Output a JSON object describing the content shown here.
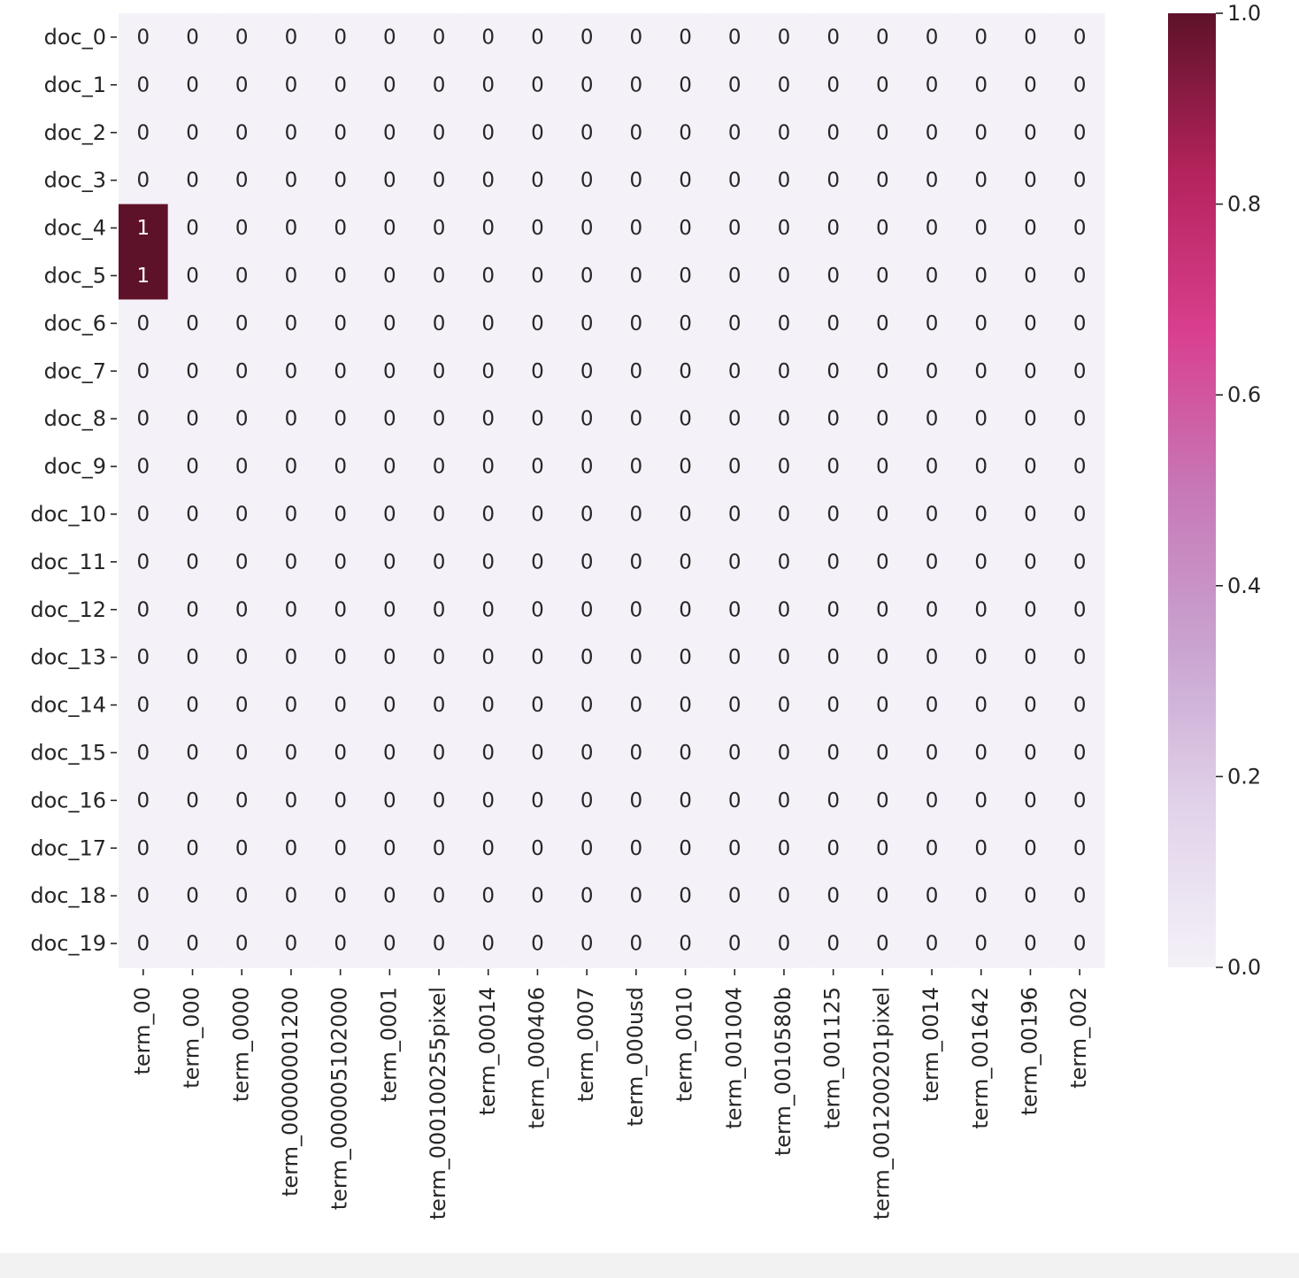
{
  "chart_data": {
    "type": "heatmap",
    "rows": [
      "doc_0",
      "doc_1",
      "doc_2",
      "doc_3",
      "doc_4",
      "doc_5",
      "doc_6",
      "doc_7",
      "doc_8",
      "doc_9",
      "doc_10",
      "doc_11",
      "doc_12",
      "doc_13",
      "doc_14",
      "doc_15",
      "doc_16",
      "doc_17",
      "doc_18",
      "doc_19"
    ],
    "columns": [
      "term_00",
      "term_000",
      "term_0000",
      "term_00000001200",
      "term_000005102000",
      "term_0001",
      "term_000100255pixel",
      "term_00014",
      "term_000406",
      "term_0007",
      "term_000usd",
      "term_0010",
      "term_001004",
      "term_0010580b",
      "term_001125",
      "term_001200201pixel",
      "term_0014",
      "term_001642",
      "term_00196",
      "term_002"
    ],
    "values": [
      [
        0,
        0,
        0,
        0,
        0,
        0,
        0,
        0,
        0,
        0,
        0,
        0,
        0,
        0,
        0,
        0,
        0,
        0,
        0,
        0
      ],
      [
        0,
        0,
        0,
        0,
        0,
        0,
        0,
        0,
        0,
        0,
        0,
        0,
        0,
        0,
        0,
        0,
        0,
        0,
        0,
        0
      ],
      [
        0,
        0,
        0,
        0,
        0,
        0,
        0,
        0,
        0,
        0,
        0,
        0,
        0,
        0,
        0,
        0,
        0,
        0,
        0,
        0
      ],
      [
        0,
        0,
        0,
        0,
        0,
        0,
        0,
        0,
        0,
        0,
        0,
        0,
        0,
        0,
        0,
        0,
        0,
        0,
        0,
        0
      ],
      [
        1,
        0,
        0,
        0,
        0,
        0,
        0,
        0,
        0,
        0,
        0,
        0,
        0,
        0,
        0,
        0,
        0,
        0,
        0,
        0
      ],
      [
        1,
        0,
        0,
        0,
        0,
        0,
        0,
        0,
        0,
        0,
        0,
        0,
        0,
        0,
        0,
        0,
        0,
        0,
        0,
        0
      ],
      [
        0,
        0,
        0,
        0,
        0,
        0,
        0,
        0,
        0,
        0,
        0,
        0,
        0,
        0,
        0,
        0,
        0,
        0,
        0,
        0
      ],
      [
        0,
        0,
        0,
        0,
        0,
        0,
        0,
        0,
        0,
        0,
        0,
        0,
        0,
        0,
        0,
        0,
        0,
        0,
        0,
        0
      ],
      [
        0,
        0,
        0,
        0,
        0,
        0,
        0,
        0,
        0,
        0,
        0,
        0,
        0,
        0,
        0,
        0,
        0,
        0,
        0,
        0
      ],
      [
        0,
        0,
        0,
        0,
        0,
        0,
        0,
        0,
        0,
        0,
        0,
        0,
        0,
        0,
        0,
        0,
        0,
        0,
        0,
        0
      ],
      [
        0,
        0,
        0,
        0,
        0,
        0,
        0,
        0,
        0,
        0,
        0,
        0,
        0,
        0,
        0,
        0,
        0,
        0,
        0,
        0
      ],
      [
        0,
        0,
        0,
        0,
        0,
        0,
        0,
        0,
        0,
        0,
        0,
        0,
        0,
        0,
        0,
        0,
        0,
        0,
        0,
        0
      ],
      [
        0,
        0,
        0,
        0,
        0,
        0,
        0,
        0,
        0,
        0,
        0,
        0,
        0,
        0,
        0,
        0,
        0,
        0,
        0,
        0
      ],
      [
        0,
        0,
        0,
        0,
        0,
        0,
        0,
        0,
        0,
        0,
        0,
        0,
        0,
        0,
        0,
        0,
        0,
        0,
        0,
        0
      ],
      [
        0,
        0,
        0,
        0,
        0,
        0,
        0,
        0,
        0,
        0,
        0,
        0,
        0,
        0,
        0,
        0,
        0,
        0,
        0,
        0
      ],
      [
        0,
        0,
        0,
        0,
        0,
        0,
        0,
        0,
        0,
        0,
        0,
        0,
        0,
        0,
        0,
        0,
        0,
        0,
        0,
        0
      ],
      [
        0,
        0,
        0,
        0,
        0,
        0,
        0,
        0,
        0,
        0,
        0,
        0,
        0,
        0,
        0,
        0,
        0,
        0,
        0,
        0
      ],
      [
        0,
        0,
        0,
        0,
        0,
        0,
        0,
        0,
        0,
        0,
        0,
        0,
        0,
        0,
        0,
        0,
        0,
        0,
        0,
        0
      ],
      [
        0,
        0,
        0,
        0,
        0,
        0,
        0,
        0,
        0,
        0,
        0,
        0,
        0,
        0,
        0,
        0,
        0,
        0,
        0,
        0
      ],
      [
        0,
        0,
        0,
        0,
        0,
        0,
        0,
        0,
        0,
        0,
        0,
        0,
        0,
        0,
        0,
        0,
        0,
        0,
        0,
        0
      ]
    ],
    "annotations": true,
    "value_range": [
      0.0,
      1.0
    ],
    "colorbar": {
      "ticks": [
        0.0,
        0.2,
        0.4,
        0.6,
        0.8,
        1.0
      ],
      "tick_labels": [
        "0.0",
        "0.2",
        "0.4",
        "0.6",
        "0.8",
        "1.0"
      ],
      "colors": [
        "#f4f1f8",
        "#e1d3ea",
        "#c9a4d0",
        "#c778b7",
        "#d93f8e",
        "#b4235c",
        "#5e1229"
      ]
    },
    "annotation_text_colors": {
      "low": "#262626",
      "high": "#ffffff"
    },
    "grid": false,
    "title": "",
    "xlabel": "",
    "ylabel": ""
  }
}
